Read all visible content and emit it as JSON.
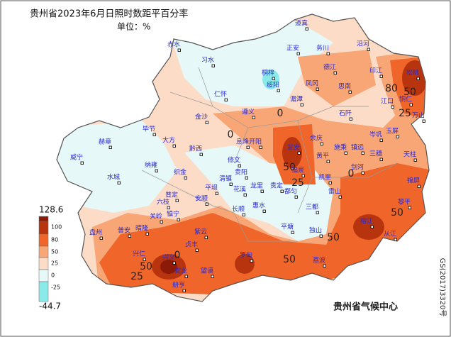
{
  "title": "贵州省2023年6月日照时数距平百分率",
  "unit": "单位：%",
  "legend": {
    "labels": [
      128.6,
      100,
      80,
      50,
      25,
      0,
      -25,
      -44.7
    ],
    "colors": [
      "#8c1a08",
      "#b8340e",
      "#f0662a",
      "#f8a676",
      "#fcdcc6",
      "#e6f8f8",
      "#8aeaea"
    ]
  },
  "stations": [
    "道真",
    "正安",
    "务川",
    "沿河",
    "赤水",
    "习水",
    "桐梓",
    "绥阳",
    "凤冈",
    "德江",
    "印江",
    "松桃",
    "仁怀",
    "湄潭",
    "思南",
    "江口",
    "铜仁",
    "万山",
    "遵义",
    "石阡",
    "金沙",
    "毕节",
    "赫章",
    "大方",
    "黔西",
    "威宁",
    "纳雍",
    "织金",
    "水城",
    "六枝",
    "普定",
    "安顺",
    "平坝",
    "清镇",
    "修文",
    "息烽",
    "开阳",
    "贵阳",
    "花溪",
    "龙里",
    "瓮安",
    "余庆",
    "黄平",
    "施秉",
    "镇远",
    "岑巩",
    "玉屏",
    "三穗",
    "天柱",
    "剑河",
    "凯里",
    "雷山",
    "锦屏",
    "黎平",
    "榕江",
    "从江",
    "三都",
    "都匀",
    "贵定",
    "福泉",
    "长顺",
    "惠水",
    "平塘",
    "独山",
    "荔波",
    "盘州",
    "普安",
    "晴隆",
    "关岭",
    "镇宁",
    "紫云",
    "兴仁",
    "兴义",
    "安龙",
    "贞丰",
    "册亨",
    "望谟",
    "罗甸"
  ],
  "contour_labels": [
    80,
    50,
    25,
    0,
    0,
    50,
    25,
    0,
    50,
    50,
    50,
    25,
    50,
    0
  ],
  "footer": "贵州省气候中心",
  "side_note": "GS(2017)3320号"
}
